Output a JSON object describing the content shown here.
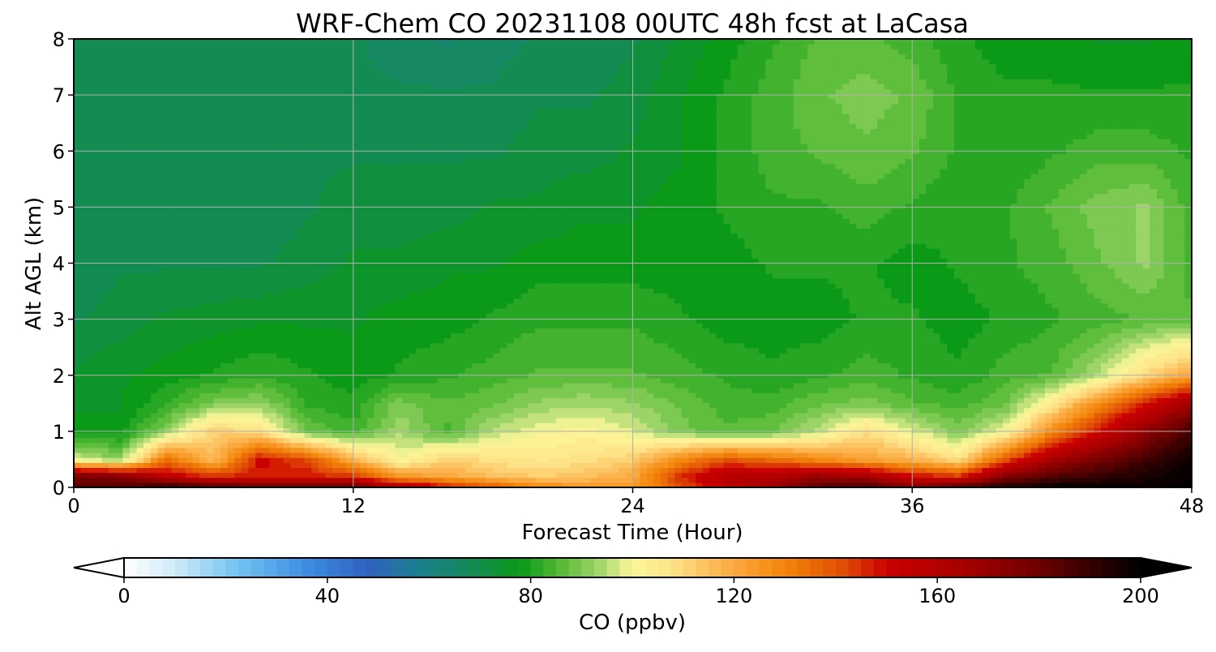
{
  "chart_data": {
    "type": "heatmap",
    "title": "WRF-Chem CO  20231108 00UTC 48h fcst at LaCasa",
    "xlabel": "Forecast Time (Hour)",
    "ylabel": "Alt AGL (km)",
    "xlim": [
      0,
      48
    ],
    "ylim": [
      0,
      8
    ],
    "xticks": [
      0,
      12,
      24,
      36,
      48
    ],
    "yticks": [
      0,
      1,
      2,
      3,
      4,
      5,
      6,
      7,
      8
    ],
    "grid": true,
    "x": [
      0,
      2,
      4,
      6,
      8,
      10,
      12,
      14,
      16,
      18,
      20,
      22,
      24,
      26,
      28,
      30,
      32,
      34,
      36,
      38,
      40,
      42,
      44,
      46,
      48
    ],
    "y": [
      0,
      0.2,
      0.5,
      1,
      1.5,
      2,
      3,
      4,
      5,
      6,
      7,
      8
    ],
    "z": [
      [
        185,
        185,
        195,
        190,
        185,
        185,
        185,
        165,
        150,
        140,
        130,
        125,
        125,
        140,
        155,
        170,
        185,
        190,
        175,
        190,
        195,
        200,
        200,
        200,
        200
      ],
      [
        180,
        175,
        155,
        145,
        148,
        148,
        145,
        125,
        120,
        115,
        112,
        115,
        120,
        145,
        160,
        160,
        170,
        165,
        150,
        145,
        175,
        185,
        190,
        195,
        200
      ],
      [
        98,
        92,
        135,
        115,
        150,
        142,
        118,
        100,
        112,
        108,
        106,
        108,
        112,
        128,
        140,
        135,
        128,
        122,
        118,
        108,
        140,
        165,
        178,
        188,
        198
      ],
      [
        78,
        78,
        92,
        112,
        108,
        88,
        84,
        94,
        85,
        95,
        100,
        102,
        98,
        90,
        86,
        88,
        96,
        108,
        98,
        90,
        100,
        128,
        150,
        172,
        188
      ],
      [
        76,
        76,
        82,
        90,
        92,
        82,
        80,
        90,
        86,
        88,
        92,
        94,
        92,
        88,
        84,
        84,
        88,
        90,
        86,
        84,
        88,
        105,
        128,
        148,
        168
      ],
      [
        74,
        76,
        78,
        80,
        82,
        80,
        78,
        80,
        82,
        84,
        86,
        86,
        86,
        84,
        82,
        80,
        82,
        84,
        82,
        80,
        84,
        86,
        95,
        110,
        122
      ],
      [
        70,
        72,
        74,
        75,
        76,
        76,
        76,
        78,
        78,
        80,
        82,
        82,
        82,
        80,
        78,
        78,
        78,
        80,
        80,
        78,
        80,
        82,
        84,
        86,
        86
      ],
      [
        68,
        70,
        70,
        70,
        70,
        72,
        74,
        74,
        76,
        76,
        78,
        78,
        78,
        78,
        78,
        80,
        80,
        80,
        78,
        80,
        82,
        84,
        88,
        92,
        84
      ],
      [
        68,
        68,
        68,
        68,
        68,
        70,
        72,
        72,
        72,
        74,
        74,
        76,
        76,
        78,
        80,
        82,
        82,
        84,
        82,
        80,
        82,
        86,
        90,
        92,
        84
      ],
      [
        68,
        68,
        68,
        68,
        68,
        70,
        70,
        70,
        70,
        70,
        72,
        72,
        74,
        76,
        80,
        84,
        86,
        88,
        86,
        82,
        80,
        82,
        84,
        84,
        82
      ],
      [
        68,
        68,
        68,
        68,
        68,
        68,
        68,
        68,
        68,
        68,
        70,
        70,
        72,
        76,
        80,
        84,
        88,
        90,
        88,
        82,
        80,
        80,
        80,
        80,
        80
      ],
      [
        68,
        68,
        68,
        68,
        68,
        68,
        68,
        66,
        64,
        66,
        68,
        68,
        70,
        74,
        78,
        82,
        86,
        86,
        84,
        80,
        78,
        78,
        76,
        76,
        78
      ]
    ],
    "colorbar": {
      "label": "CO  (ppbv)",
      "min": 0,
      "max": 200,
      "ticks": [
        0,
        40,
        80,
        120,
        160,
        200
      ],
      "extend": "both"
    },
    "colormap_stops": [
      {
        "v": 0,
        "c": "#ffffff"
      },
      {
        "v": 10,
        "c": "#cfeaf8"
      },
      {
        "v": 22,
        "c": "#74c4f2"
      },
      {
        "v": 36,
        "c": "#3d8de2"
      },
      {
        "v": 48,
        "c": "#2f62c0"
      },
      {
        "v": 58,
        "c": "#1c7f8e"
      },
      {
        "v": 68,
        "c": "#148a58"
      },
      {
        "v": 78,
        "c": "#0a9a18"
      },
      {
        "v": 86,
        "c": "#56ba36"
      },
      {
        "v": 94,
        "c": "#a6d870"
      },
      {
        "v": 100,
        "c": "#fdf79a"
      },
      {
        "v": 108,
        "c": "#fde287"
      },
      {
        "v": 118,
        "c": "#fcb04a"
      },
      {
        "v": 130,
        "c": "#f3850a"
      },
      {
        "v": 142,
        "c": "#df4a05"
      },
      {
        "v": 150,
        "c": "#cb0000"
      },
      {
        "v": 165,
        "c": "#a80000"
      },
      {
        "v": 180,
        "c": "#6e0000"
      },
      {
        "v": 192,
        "c": "#2a0000"
      },
      {
        "v": 200,
        "c": "#000000"
      }
    ]
  }
}
